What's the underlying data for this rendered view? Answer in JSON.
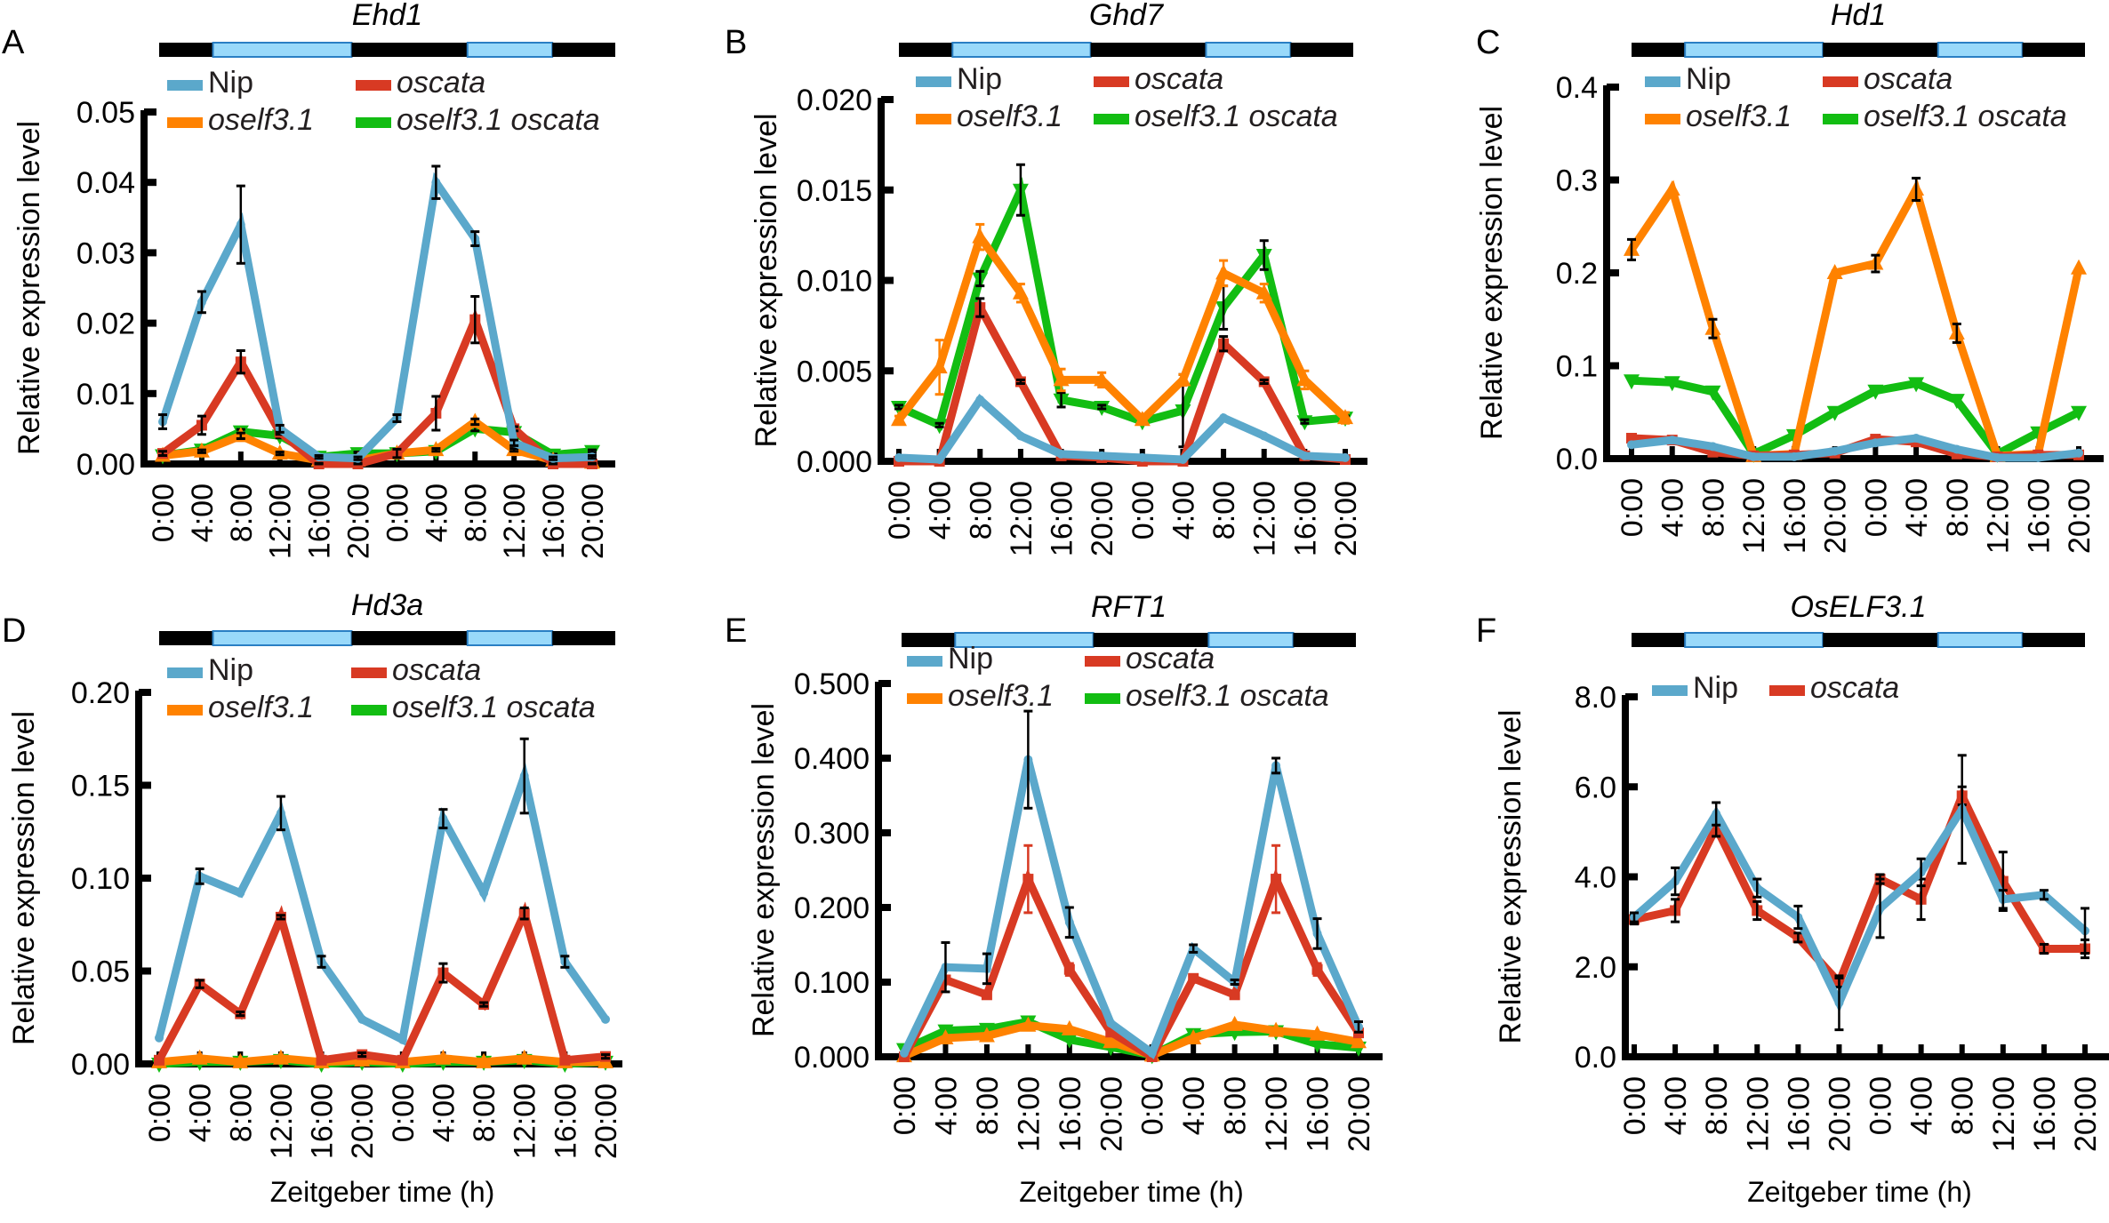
{
  "figure": {
    "xlabel": "Zeitgeber time (h)",
    "ylabel": "Relative expression level",
    "photoperiod_bar": {
      "segments": [
        "dark",
        "light",
        "dark",
        "light",
        "dark"
      ],
      "colors": {
        "dark": "#000000",
        "light": "#99d9fa",
        "light_border": "#2a7fc4"
      }
    }
  },
  "series_colors": {
    "Nip": "#5ba8cb",
    "oscata": "#d83a23",
    "oself3.1": "#ff8200",
    "oself3.1 oscata": "#12bd12"
  },
  "chart_data": [
    {
      "panel": "A",
      "type": "line",
      "title": "Ehd1",
      "xlabel": "",
      "ylabel": "Relative expression level",
      "categories": [
        "0:00",
        "4:00",
        "8:00",
        "12:00",
        "16:00",
        "20:00",
        "0:00",
        "4:00",
        "8:00",
        "12:00",
        "16:00",
        "20:00"
      ],
      "ylim": [
        0,
        0.05
      ],
      "yticks": [
        "0.00",
        "0.01",
        "0.02",
        "0.03",
        "0.04",
        "0.05"
      ],
      "yticks_values": [
        0,
        0.01,
        0.02,
        0.03,
        0.04,
        0.05
      ],
      "legend": [
        "Nip",
        "oscata",
        "oself3.1",
        "oself3.1 oscata"
      ],
      "legend_position": "top",
      "series": [
        {
          "name": "Nip",
          "marker": "circle",
          "values": [
            0.006,
            0.023,
            0.034,
            0.005,
            0.001,
            0.0008,
            0.0065,
            0.04,
            0.032,
            0.003,
            0.0008,
            0.001
          ],
          "errors": [
            0.001,
            0.0015,
            0.0055,
            0.0005,
            0.0002,
            0.0002,
            0.0005,
            0.0023,
            0.001,
            0.0004,
            0.0002,
            0.0002
          ]
        },
        {
          "name": "oscata",
          "marker": "square",
          "values": [
            0.0015,
            0.0055,
            0.0145,
            0.0045,
            0.0,
            0.0,
            0.0015,
            0.0072,
            0.0205,
            0.005,
            0.0,
            0.0
          ],
          "errors": [
            0.0003,
            0.0013,
            0.0016,
            0.0003,
            0.0001,
            0.0001,
            0.0006,
            0.0024,
            0.0033,
            0.0003,
            0.0001,
            0.0001
          ]
        },
        {
          "name": "oself3.1",
          "marker": "triangle-up",
          "values": [
            0.0012,
            0.0018,
            0.004,
            0.0015,
            0.0005,
            0.0005,
            0.0015,
            0.002,
            0.006,
            0.002,
            0.0005,
            0.0002
          ],
          "errors": [
            0.0002,
            0.0002,
            0.0004,
            0.0002,
            0.0001,
            0.0001,
            0.0002,
            0.0002,
            0.0004,
            0.0002,
            0.0001,
            0.0001
          ]
        },
        {
          "name": "oself3.1 oscata",
          "marker": "triangle-down",
          "values": [
            0.0012,
            0.002,
            0.0046,
            0.004,
            0.001,
            0.0015,
            0.0015,
            0.0018,
            0.005,
            0.0045,
            0.0013,
            0.0018
          ],
          "errors": [
            0.0002,
            0.0002,
            0.0003,
            0.0003,
            0.0001,
            0.0002,
            0.0002,
            0.0002,
            0.0003,
            0.0003,
            0.0001,
            0.0002
          ]
        }
      ]
    },
    {
      "panel": "B",
      "type": "line",
      "title": "Ghd7",
      "xlabel": "",
      "ylabel": "Relative expression level",
      "categories": [
        "0:00",
        "4:00",
        "8:00",
        "12:00",
        "16:00",
        "20:00",
        "0:00",
        "4:00",
        "8:00",
        "12:00",
        "16:00",
        "20:00"
      ],
      "ylim": [
        0,
        0.02
      ],
      "yticks": [
        "0.000",
        "0.005",
        "0.010",
        "0.015",
        "0.020"
      ],
      "yticks_values": [
        0,
        0.005,
        0.01,
        0.015,
        0.02
      ],
      "legend": [
        "Nip",
        "oscata",
        "oself3.1",
        "oself3.1 oscata"
      ],
      "legend_position": "top",
      "series": [
        {
          "name": "Nip",
          "marker": "circle",
          "values": [
            0.0002,
            0.0001,
            0.0034,
            0.0014,
            0.0004,
            0.0003,
            0.0002,
            0.0001,
            0.0024,
            0.0014,
            0.0003,
            0.0002
          ],
          "errors": [
            0,
            0,
            0,
            0,
            0,
            0,
            0,
            0,
            0,
            0,
            0,
            0
          ]
        },
        {
          "name": "oscata",
          "marker": "square",
          "values": [
            0.0,
            0.0,
            0.0085,
            0.0044,
            0.0003,
            0.0002,
            0.0,
            0.0,
            0.0065,
            0.0044,
            0.0003,
            0.0001
          ],
          "errors": [
            0,
            0,
            0.0005,
            0.0001,
            0,
            0,
            0,
            0,
            0.0004,
            0.0001,
            0,
            0
          ]
        },
        {
          "name": "oself3.1",
          "marker": "triangle-up",
          "values": [
            0.0023,
            0.0052,
            0.0124,
            0.0093,
            0.0045,
            0.0045,
            0.0023,
            0.0045,
            0.0104,
            0.0093,
            0.0045,
            0.0024
          ],
          "errors": [
            0.0002,
            0.0015,
            0.0007,
            0.0005,
            0.0006,
            0.0004,
            0.0001,
            0.0003,
            0.0007,
            0.0005,
            0.0005,
            0.0003
          ]
        },
        {
          "name": "oself3.1 oscata",
          "marker": "triangle-down",
          "values": [
            0.003,
            0.002,
            0.0101,
            0.015,
            0.0034,
            0.003,
            0.0022,
            0.0028,
            0.0085,
            0.0114,
            0.0022,
            0.0024
          ],
          "errors": [
            0.0001,
            0.0001,
            0.0004,
            0.0014,
            0.0004,
            0.0001,
            0.0001,
            0.002,
            0.0012,
            0.0008,
            0.0001,
            0.0001
          ]
        }
      ]
    },
    {
      "panel": "C",
      "type": "line",
      "title": "Hd1",
      "xlabel": "",
      "ylabel": "Relative expression level",
      "categories": [
        "0:00",
        "4:00",
        "8:00",
        "12:00",
        "16:00",
        "20:00",
        "0:00",
        "4:00",
        "8:00",
        "12:00",
        "16:00",
        "20:00"
      ],
      "ylim": [
        0,
        0.4
      ],
      "yticks": [
        "0.0",
        "0.1",
        "0.2",
        "0.3",
        "0.4"
      ],
      "yticks_values": [
        0,
        0.1,
        0.2,
        0.3,
        0.4
      ],
      "legend": [
        "Nip",
        "oscata",
        "oself3.1",
        "oself3.1 oscata"
      ],
      "legend_position": "top",
      "series": [
        {
          "name": "Nip",
          "marker": "circle",
          "values": [
            0.015,
            0.02,
            0.013,
            0.002,
            0.002,
            0.008,
            0.017,
            0.022,
            0.01,
            0.001,
            0.001,
            0.006
          ],
          "errors": [
            0,
            0,
            0,
            0,
            0,
            0,
            0,
            0,
            0,
            0,
            0,
            0
          ]
        },
        {
          "name": "oscata",
          "marker": "square",
          "values": [
            0.022,
            0.02,
            0.007,
            0.003,
            0.004,
            0.006,
            0.021,
            0.018,
            0.005,
            0.002,
            0.004,
            0.004
          ],
          "errors": [
            0,
            0,
            0,
            0,
            0,
            0,
            0,
            0,
            0,
            0,
            0,
            0
          ]
        },
        {
          "name": "oself3.1",
          "marker": "triangle-up",
          "values": [
            0.225,
            0.29,
            0.14,
            0.003,
            0.005,
            0.2,
            0.21,
            0.29,
            0.135,
            0.003,
            0.005,
            0.205
          ],
          "errors": [
            0.011,
            0.0,
            0.01,
            0.0,
            0.0,
            0.0,
            0.009,
            0.012,
            0.01,
            0.0,
            0.0,
            0.0
          ]
        },
        {
          "name": "oself3.1 oscata",
          "marker": "triangle-down",
          "values": [
            0.084,
            0.082,
            0.072,
            0.005,
            0.025,
            0.05,
            0.073,
            0.081,
            0.063,
            0.005,
            0.028,
            0.05
          ],
          "errors": [
            0,
            0,
            0,
            0,
            0,
            0,
            0,
            0,
            0,
            0,
            0,
            0
          ]
        }
      ]
    },
    {
      "panel": "D",
      "type": "line",
      "title": "Hd3a",
      "xlabel": "Zeitgeber time (h)",
      "ylabel": "Relative expression level",
      "categories": [
        "0:00",
        "4:00",
        "8:00",
        "12:00",
        "16:00",
        "20:00",
        "0:00",
        "4:00",
        "8:00",
        "12:00",
        "16:00",
        "20:00"
      ],
      "ylim": [
        0,
        0.2
      ],
      "yticks": [
        "0.00",
        "0.05",
        "0.10",
        "0.15",
        "0.20"
      ],
      "yticks_values": [
        0,
        0.05,
        0.1,
        0.15,
        0.2
      ],
      "legend": [
        "Nip",
        "oscata",
        "oself3.1",
        "oself3.1 oscata"
      ],
      "legend_position": "top",
      "series": [
        {
          "name": "Nip",
          "marker": "circle",
          "values": [
            0.014,
            0.101,
            0.092,
            0.135,
            0.055,
            0.024,
            0.013,
            0.132,
            0.092,
            0.155,
            0.055,
            0.024
          ],
          "errors": [
            0,
            0.004,
            0,
            0.009,
            0.003,
            0,
            0,
            0.005,
            0,
            0.02,
            0.003,
            0
          ]
        },
        {
          "name": "oscata",
          "marker": "square",
          "values": [
            0.002,
            0.043,
            0.027,
            0.079,
            0.002,
            0.005,
            0.002,
            0.049,
            0.032,
            0.081,
            0.002,
            0.004
          ],
          "errors": [
            0,
            0.002,
            0.001,
            0.001,
            0,
            0.001,
            0,
            0.005,
            0.001,
            0.003,
            0,
            0.001
          ]
        },
        {
          "name": "oself3.1",
          "marker": "triangle-up",
          "values": [
            0.001,
            0.003,
            0.001,
            0.003,
            0.001,
            0.002,
            0.001,
            0.003,
            0.001,
            0.003,
            0.001,
            0.001
          ],
          "errors": [
            0,
            0,
            0,
            0,
            0,
            0,
            0,
            0,
            0,
            0,
            0,
            0
          ]
        },
        {
          "name": "oself3.1 oscata",
          "marker": "triangle-down",
          "values": [
            0.0,
            0.001,
            0.001,
            0.002,
            0.0,
            0.001,
            0.0,
            0.001,
            0.001,
            0.002,
            0.0,
            0.001
          ],
          "errors": [
            0,
            0,
            0,
            0,
            0,
            0,
            0,
            0,
            0,
            0,
            0,
            0
          ]
        }
      ]
    },
    {
      "panel": "E",
      "type": "line",
      "title": "RFT1",
      "xlabel": "Zeitgeber time (h)",
      "ylabel": "Relative expression level",
      "categories": [
        "0:00",
        "4:00",
        "8:00",
        "12:00",
        "16:00",
        "20:00",
        "0:00",
        "4:00",
        "8:00",
        "12:00",
        "16:00",
        "20:00"
      ],
      "ylim": [
        0,
        0.5
      ],
      "yticks": [
        "0.000",
        "0.100",
        "0.200",
        "0.300",
        "0.400",
        "0.500"
      ],
      "yticks_values": [
        0,
        0.1,
        0.2,
        0.3,
        0.4,
        0.5
      ],
      "legend": [
        "Nip",
        "oscata",
        "oself3.1",
        "oself3.1 oscata"
      ],
      "legend_position": "top",
      "series": [
        {
          "name": "Nip",
          "marker": "circle",
          "values": [
            0.005,
            0.12,
            0.118,
            0.398,
            0.18,
            0.045,
            0.005,
            0.145,
            0.1,
            0.39,
            0.165,
            0.04
          ],
          "errors": [
            0,
            0.033,
            0.02,
            0.065,
            0.02,
            0,
            0,
            0.005,
            0.003,
            0.01,
            0.02,
            0.007
          ]
        },
        {
          "name": "oscata",
          "marker": "square",
          "values": [
            0.0,
            0.103,
            0.083,
            0.238,
            0.117,
            0.033,
            0.0,
            0.105,
            0.083,
            0.238,
            0.117,
            0.032
          ],
          "errors": [
            0,
            0,
            0,
            0.045,
            0.008,
            0,
            0,
            0,
            0,
            0.045,
            0.008,
            0
          ]
        },
        {
          "name": "oself3.1",
          "marker": "triangle-up",
          "values": [
            0.001,
            0.025,
            0.028,
            0.042,
            0.037,
            0.02,
            0.002,
            0.025,
            0.043,
            0.035,
            0.03,
            0.02
          ],
          "errors": [
            0,
            0,
            0,
            0,
            0,
            0,
            0,
            0,
            0,
            0,
            0,
            0
          ]
        },
        {
          "name": "oself3.1 oscata",
          "marker": "triangle-down",
          "values": [
            0.01,
            0.035,
            0.037,
            0.047,
            0.023,
            0.013,
            0.002,
            0.03,
            0.033,
            0.034,
            0.017,
            0.012
          ],
          "errors": [
            0,
            0,
            0,
            0,
            0,
            0,
            0,
            0,
            0,
            0,
            0,
            0
          ]
        }
      ]
    },
    {
      "panel": "F",
      "type": "line",
      "title": "OsELF3.1",
      "xlabel": "Zeitgeber time (h)",
      "ylabel": "Relative expression level",
      "categories": [
        "0:00",
        "4:00",
        "8:00",
        "12:00",
        "16:00",
        "20:00",
        "0:00",
        "4:00",
        "8:00",
        "12:00",
        "16:00",
        "20:00"
      ],
      "ylim": [
        0,
        8.0
      ],
      "yticks": [
        "0.0",
        "2.0",
        "4.0",
        "6.0",
        "8.0"
      ],
      "yticks_values": [
        0,
        2,
        4,
        6,
        8
      ],
      "legend": [
        "Nip",
        "oscata"
      ],
      "legend_position": "top-left",
      "series": [
        {
          "name": "Nip",
          "marker": "circle",
          "values": [
            3.1,
            3.9,
            5.4,
            3.75,
            3.1,
            1.2,
            3.3,
            4.1,
            5.5,
            3.5,
            3.6,
            2.8
          ],
          "errors": [
            0.1,
            0.3,
            0.25,
            0.2,
            0.25,
            0.6,
            0.65,
            0.3,
            1.2,
            0.2,
            0.1,
            0.5
          ]
        },
        {
          "name": "oscata",
          "marker": "square",
          "values": [
            3.05,
            3.25,
            5.1,
            3.25,
            2.65,
            1.65,
            3.95,
            3.5,
            5.8,
            3.9,
            2.4,
            2.4
          ],
          "errors": [
            0.1,
            0.25,
            0.2,
            0.2,
            0.1,
            0.1,
            0.1,
            0.45,
            0.2,
            0.65,
            0.1,
            0.2
          ]
        }
      ]
    }
  ]
}
